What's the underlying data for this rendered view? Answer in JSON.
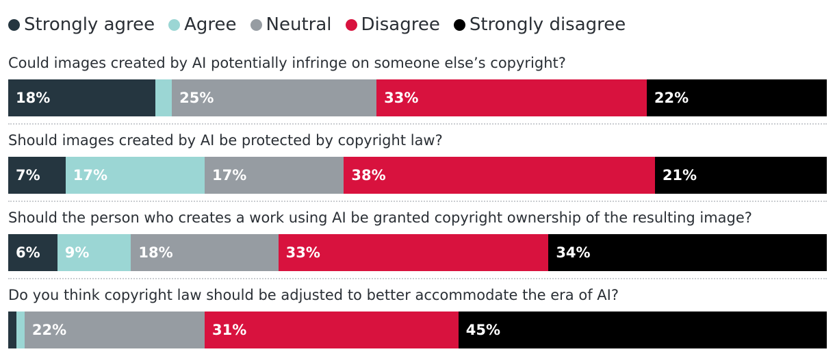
{
  "chart_data": {
    "type": "bar",
    "orientation": "horizontal",
    "stacked": true,
    "normalized_to": 100,
    "legend_position": "top-left",
    "grid": false,
    "categories": [
      "Could images created by AI potentially infringe on someone else’s copyright?",
      "Should images created by AI be protected by copyright law?",
      "Should the person who creates a work using AI be granted copyright ownership of the resulting image?",
      "Do you think copyright law should be adjusted to better accommodate the era of AI?"
    ],
    "series": [
      {
        "name": "Strongly agree",
        "color": "#253640",
        "values": [
          18,
          7,
          6,
          1
        ],
        "labels": [
          "18%",
          "7%",
          "6%",
          ""
        ]
      },
      {
        "name": "Agree",
        "color": "#9bd6d4",
        "values": [
          2,
          17,
          9,
          1
        ],
        "labels": [
          "",
          "17%",
          "9%",
          ""
        ]
      },
      {
        "name": "Neutral",
        "color": "#969ca2",
        "values": [
          25,
          17,
          18,
          22
        ],
        "labels": [
          "25%",
          "17%",
          "18%",
          "22%"
        ]
      },
      {
        "name": "Disagree",
        "color": "#d8123e",
        "values": [
          33,
          38,
          33,
          31
        ],
        "labels": [
          "33%",
          "38%",
          "33%",
          "31%"
        ]
      },
      {
        "name": "Strongly disagree",
        "color": "#000000",
        "values": [
          22,
          21,
          34,
          45
        ],
        "labels": [
          "22%",
          "21%",
          "34%",
          "45%"
        ]
      }
    ]
  }
}
